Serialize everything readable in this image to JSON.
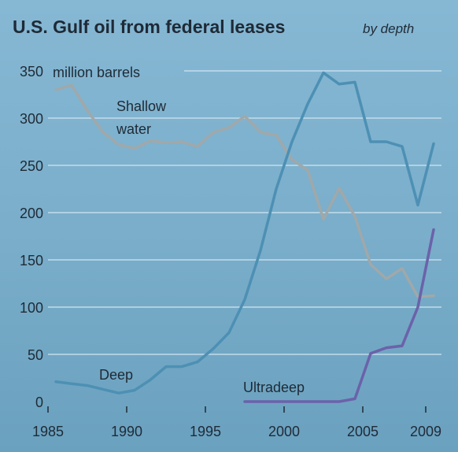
{
  "chart_data": {
    "type": "line",
    "title": "U.S. Gulf oil from federal leases",
    "subtitle": "by depth",
    "yunit": "million barrels",
    "xlim": [
      1985,
      2010
    ],
    "ylim": [
      0,
      350
    ],
    "yticks": [
      0,
      50,
      100,
      150,
      200,
      250,
      300,
      350
    ],
    "xticks": [
      1985,
      1990,
      1995,
      2000,
      2005,
      2009
    ],
    "grid": true,
    "series": [
      {
        "name": "Shallow water",
        "color": "#a0a8aa",
        "x": [
          1985.5,
          1986.5,
          1987.5,
          1988.5,
          1989.5,
          1990.5,
          1991.5,
          1992.5,
          1993.5,
          1994.5,
          1995.5,
          1996.5,
          1997.5,
          1998.5,
          1999.5,
          2000.5,
          2001.5,
          2002.5,
          2003.5,
          2004.5,
          2005.5,
          2006.5,
          2007.5,
          2008.5,
          2009.5
        ],
        "values": [
          330,
          335,
          308,
          285,
          272,
          268,
          276,
          274,
          275,
          270,
          285,
          290,
          302,
          285,
          282,
          256,
          245,
          193,
          226,
          196,
          145,
          130,
          141,
          111,
          112
        ]
      },
      {
        "name": "Deep",
        "color": "#4d90b4",
        "x": [
          1985.5,
          1986.5,
          1987.5,
          1988.5,
          1989.5,
          1990.5,
          1991.5,
          1992.5,
          1993.5,
          1994.5,
          1995.5,
          1996.5,
          1997.5,
          1998.5,
          1999.5,
          2000.5,
          2001.5,
          2002.5,
          2003.5,
          2004.5,
          2005.5,
          2006.5,
          2007.5,
          2008.5,
          2009.5
        ],
        "values": [
          21,
          19,
          17,
          13,
          9,
          12,
          23,
          37,
          37,
          42,
          56,
          73,
          108,
          160,
          225,
          275,
          315,
          348,
          336,
          338,
          275,
          275,
          270,
          208,
          273
        ]
      },
      {
        "name": "Ultradeep",
        "color": "#6b62aa",
        "x": [
          1997.5,
          1998.5,
          1999.5,
          2000.5,
          2001.5,
          2002.5,
          2003.5,
          2004.5,
          2005.5,
          2006.5,
          2007.5,
          2008.5,
          2009.5
        ],
        "values": [
          0,
          0,
          0,
          0,
          0,
          0,
          0,
          3,
          51,
          57,
          59,
          100,
          182
        ]
      }
    ],
    "labels": {
      "shallow_line1": "Shallow",
      "shallow_line2": "water",
      "deep": "Deep",
      "ultradeep": "Ultradeep"
    }
  }
}
